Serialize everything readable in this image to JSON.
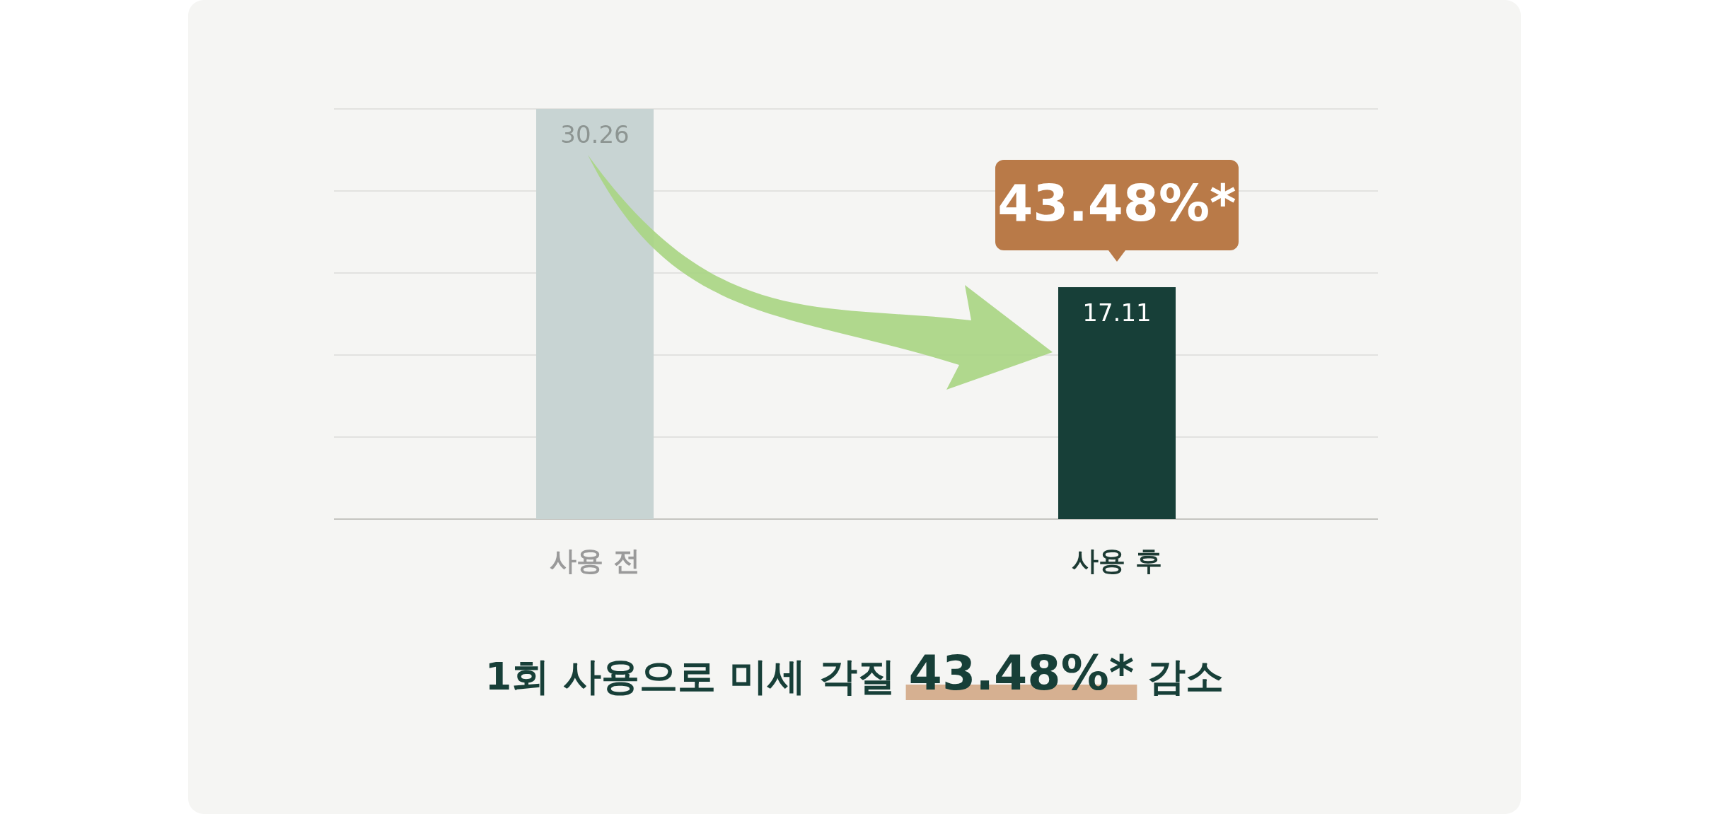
{
  "chart_data": {
    "type": "bar",
    "title": "1회 사용으로 미세 각질 43.48%* 감소",
    "categories": [
      "사용 전",
      "사용 후"
    ],
    "values": [
      30.26,
      17.11
    ],
    "colors": [
      "#c8d4d3",
      "#173f38"
    ],
    "data_labels": true,
    "grid": true,
    "annotations": [
      "43.48%*"
    ]
  }
}
